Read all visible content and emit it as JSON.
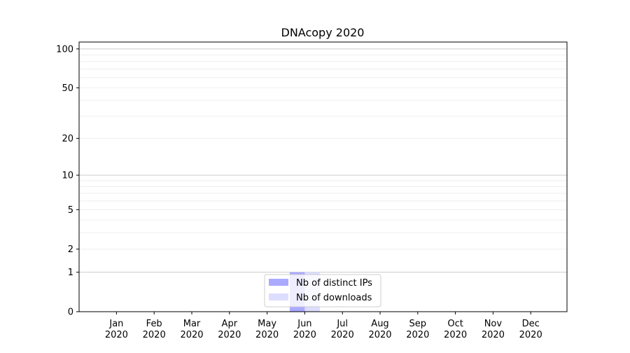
{
  "chart_data": {
    "type": "bar",
    "title": "DNAcopy 2020",
    "xlabel": "",
    "ylabel": "",
    "yscale": "log(1+y)",
    "ylim": [
      0,
      113
    ],
    "yticks": [
      0,
      1,
      2,
      5,
      10,
      20,
      50,
      100
    ],
    "grid": true,
    "legend_position": "lower center",
    "categories": [
      "Jan\n2020",
      "Feb\n2020",
      "Mar\n2020",
      "Apr\n2020",
      "May\n2020",
      "Jun\n2020",
      "Jul\n2020",
      "Aug\n2020",
      "Sep\n2020",
      "Oct\n2020",
      "Nov\n2020",
      "Dec\n2020"
    ],
    "series": [
      {
        "name": "Nb of distinct IPs",
        "color": "#aaaaff",
        "values": [
          0,
          0,
          0,
          0,
          0,
          1,
          0,
          0,
          0,
          0,
          0,
          0
        ]
      },
      {
        "name": "Nb of downloads",
        "color": "#ddddff",
        "values": [
          0,
          0,
          0,
          0,
          0,
          1,
          0,
          0,
          0,
          0,
          0,
          0
        ]
      }
    ]
  }
}
